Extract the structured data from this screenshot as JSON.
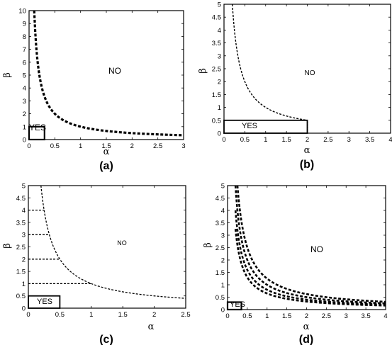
{
  "chart_data": [
    {
      "id": "a",
      "type": "line",
      "panel_label": "(a)",
      "xlabel": "α",
      "ylabel": "β",
      "xlim": [
        0,
        3
      ],
      "ylim": [
        0,
        10
      ],
      "xticks": [
        "0",
        "0.5",
        "1",
        "1.5",
        "2",
        "2.5",
        "3"
      ],
      "yticks": [
        "0",
        "1",
        "2",
        "3",
        "4",
        "5",
        "6",
        "7",
        "8",
        "9",
        "10"
      ],
      "curves": [
        {
          "k": 1.0,
          "x_range": [
            0.1,
            3.0
          ]
        }
      ],
      "yes_box": {
        "x": [
          0,
          0.3
        ],
        "y": [
          0,
          1
        ]
      },
      "annotations": {
        "no": "NO",
        "yes": "YES"
      }
    },
    {
      "id": "b",
      "type": "line",
      "panel_label": "(b)",
      "xlabel": "α",
      "ylabel": "β",
      "xlim": [
        0,
        4
      ],
      "ylim": [
        0,
        5
      ],
      "xticks": [
        "0",
        "0.5",
        "1",
        "1.5",
        "2",
        "2.5",
        "3",
        "3.5",
        "4"
      ],
      "yticks": [
        "0",
        "0.5",
        "1",
        "1.5",
        "2",
        "2.5",
        "3",
        "3.5",
        "4",
        "4.5",
        "5"
      ],
      "curves": [
        {
          "k": 1.0,
          "x_range": [
            0.2,
            2.0
          ]
        }
      ],
      "vline": {
        "x": 2.0,
        "y": [
          0,
          0.5
        ]
      },
      "yes_box": {
        "x": [
          0,
          2.0
        ],
        "y": [
          0,
          0.5
        ]
      },
      "annotations": {
        "no": "NO",
        "yes": "YES"
      }
    },
    {
      "id": "c",
      "type": "line",
      "panel_label": "(c)",
      "xlabel": "α",
      "ylabel": "β",
      "xlim": [
        0,
        2.5
      ],
      "ylim": [
        0,
        5
      ],
      "xticks": [
        "0",
        "0.5",
        "1",
        "1.5",
        "2",
        "2.5"
      ],
      "yticks": [
        "0",
        "0.5",
        "1",
        "1.5",
        "2",
        "2.5",
        "3",
        "3.5",
        "4",
        "4.5",
        "5"
      ],
      "curves": [
        {
          "k": 1.0,
          "x_range": [
            0.2,
            2.5
          ]
        }
      ],
      "hlines": [
        {
          "y": 1,
          "x_end": 1.0
        },
        {
          "y": 2,
          "x_end": 0.5
        },
        {
          "y": 3,
          "x_end": 0.333
        },
        {
          "y": 4,
          "x_end": 0.25
        }
      ],
      "yes_box": {
        "x": [
          0,
          0.5
        ],
        "y": [
          0,
          0.5
        ]
      },
      "annotations": {
        "no": "NO",
        "yes": "YES"
      }
    },
    {
      "id": "d",
      "type": "line",
      "panel_label": "(d)",
      "xlabel": "α",
      "ylabel": "β",
      "xlim": [
        0,
        4
      ],
      "ylim": [
        0,
        5
      ],
      "xticks": [
        "0",
        "0.5",
        "1",
        "1.5",
        "2",
        "2.5",
        "3",
        "3.5",
        "4"
      ],
      "yticks": [
        "0",
        "0.5",
        "1",
        "1.5",
        "2",
        "2.5",
        "3",
        "3.5",
        "4",
        "4.5",
        "5"
      ],
      "curves": [
        {
          "k": 0.65,
          "x_range": [
            0.2,
            4.0
          ]
        },
        {
          "k": 0.8,
          "x_range": [
            0.2,
            4.0
          ]
        },
        {
          "k": 1.0,
          "x_range": [
            0.2,
            4.0
          ]
        },
        {
          "k": 1.25,
          "x_range": [
            0.25,
            4.0
          ]
        }
      ],
      "yes_box": {
        "x": [
          0,
          0.35
        ],
        "y": [
          0,
          0.3
        ]
      },
      "annotations": {
        "no": "NO",
        "yes": "YES"
      }
    }
  ]
}
